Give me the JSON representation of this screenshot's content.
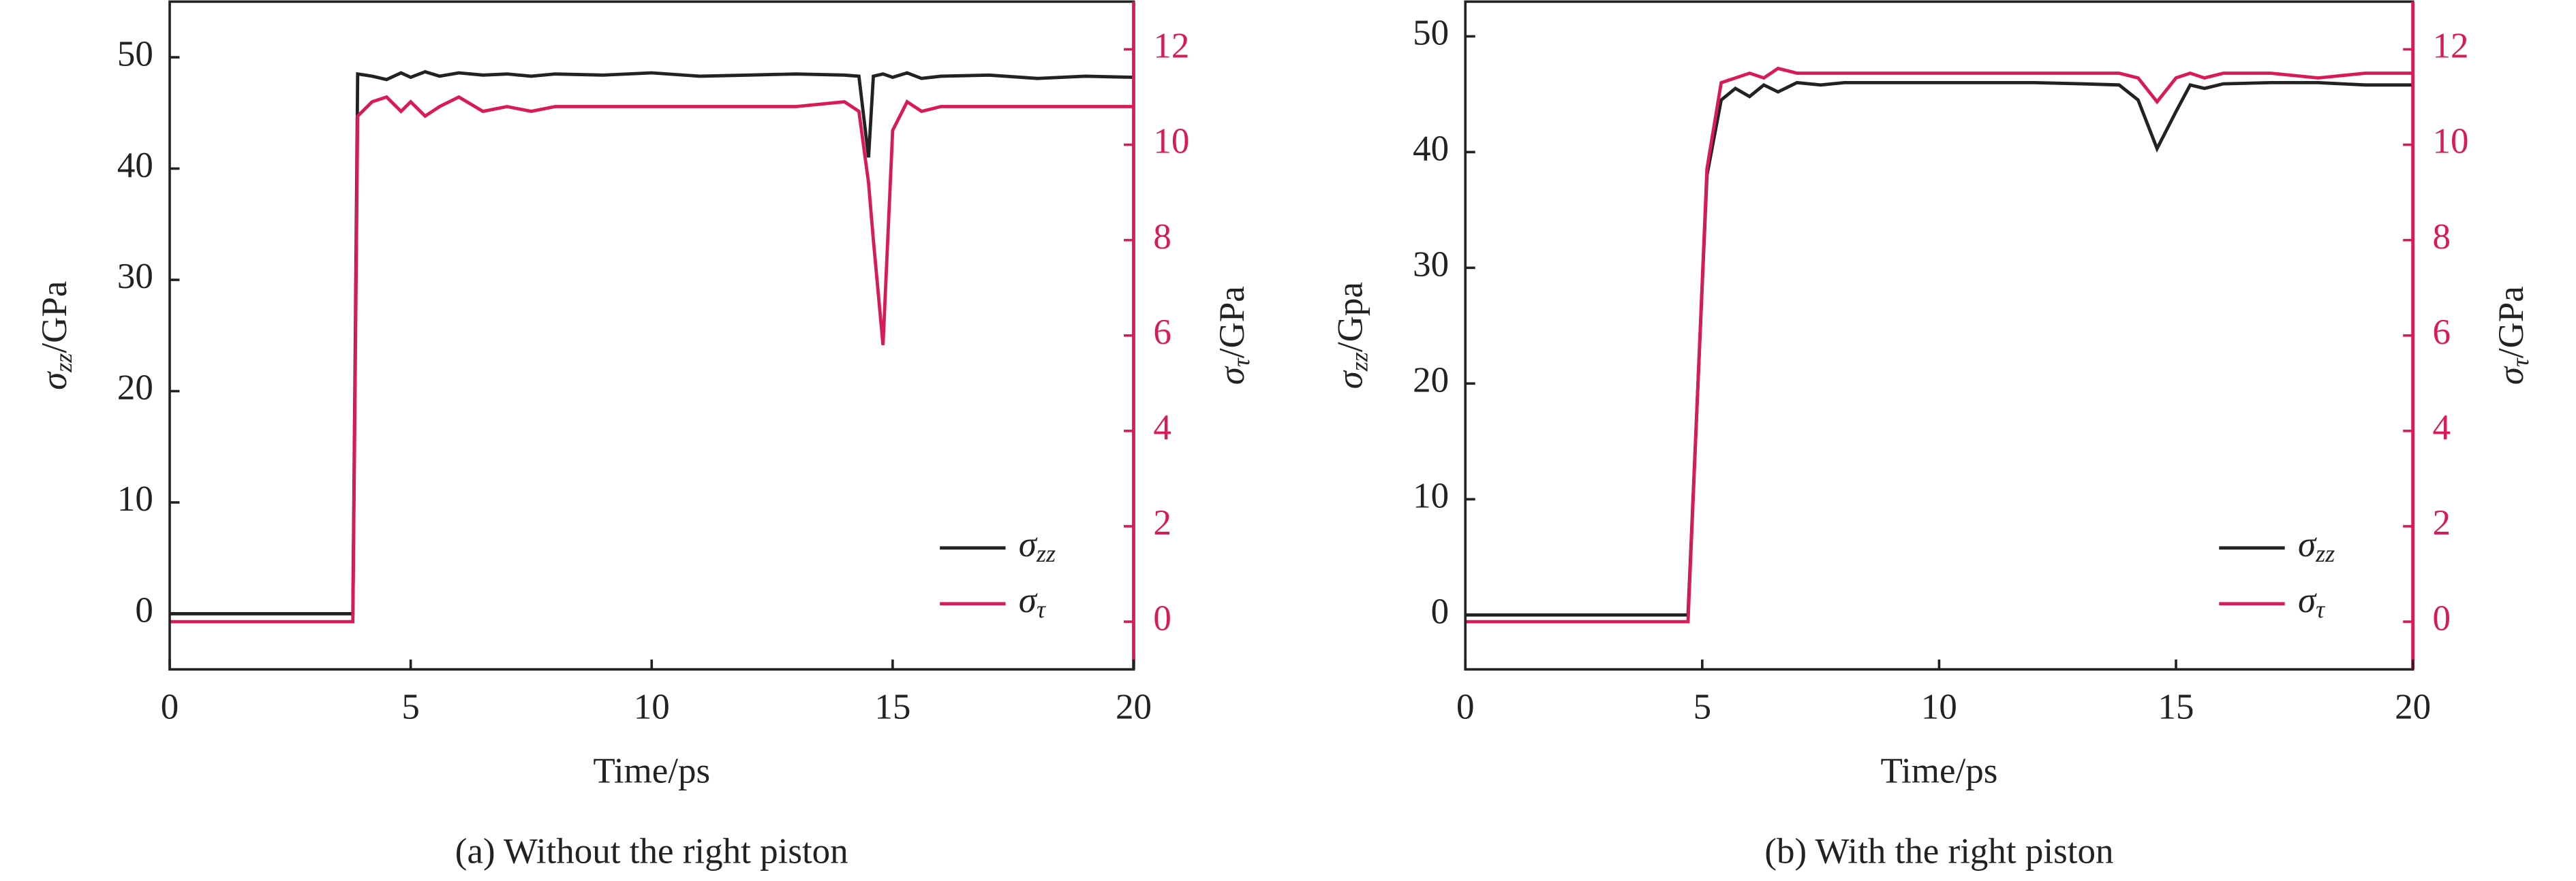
{
  "chart_data": [
    {
      "type": "line",
      "caption": "(a) Without the right piston",
      "xlabel": "Time/ps",
      "ylabel": "σzz/GPa",
      "y2label": "στ/GPa",
      "x": [
        0,
        1,
        2,
        3,
        3.8,
        3.9,
        4.2,
        4.5,
        4.8,
        5,
        5.3,
        5.6,
        6,
        6.5,
        7,
        7.5,
        8,
        9,
        10,
        11,
        12,
        13,
        14,
        14.3,
        14.5,
        14.6,
        14.8,
        15,
        15.3,
        15.6,
        16,
        17,
        18,
        19,
        20
      ],
      "series": [
        {
          "name": "σzz",
          "color": "#222222",
          "values": [
            0,
            0,
            0,
            0,
            0,
            48.5,
            48.3,
            48.0,
            48.6,
            48.2,
            48.7,
            48.3,
            48.6,
            48.4,
            48.5,
            48.3,
            48.5,
            48.4,
            48.6,
            48.3,
            48.4,
            48.5,
            48.4,
            48.3,
            41,
            48.3,
            48.5,
            48.2,
            48.6,
            48.1,
            48.3,
            48.4,
            48.1,
            48.3,
            48.2
          ]
        },
        {
          "name": "στ",
          "color": "#d81b55",
          "axis": "y2",
          "values": [
            0,
            0,
            0,
            0,
            0,
            10.6,
            10.9,
            11.0,
            10.7,
            10.9,
            10.6,
            10.8,
            11.0,
            10.7,
            10.8,
            10.7,
            10.8,
            10.8,
            10.8,
            10.8,
            10.8,
            10.8,
            10.9,
            10.7,
            9.2,
            8.0,
            5.8,
            10.3,
            10.9,
            10.7,
            10.8,
            10.8,
            10.8,
            10.8,
            10.8
          ]
        }
      ],
      "xlim": [
        0,
        20
      ],
      "xticks": [
        0,
        5,
        10,
        15,
        20
      ],
      "ylim": [
        -5,
        55
      ],
      "yticks": [
        0,
        10,
        20,
        30,
        40,
        50
      ],
      "y2lim": [
        -1,
        13
      ],
      "y2ticks": [
        0,
        2,
        4,
        6,
        8,
        10,
        12
      ],
      "y2color": "#d81b55",
      "legend": "lower right"
    },
    {
      "type": "line",
      "caption": "(b) With the right piston",
      "xlabel": "Time/ps",
      "ylabel": "σzz/Gpa",
      "y2label": "στ/GPa",
      "x": [
        0,
        1,
        2,
        3,
        4,
        4.7,
        5.1,
        5.4,
        5.7,
        6,
        6.3,
        6.6,
        7,
        7.5,
        8,
        9,
        10,
        11,
        12,
        13,
        13.8,
        14.2,
        14.6,
        15,
        15.3,
        15.6,
        16,
        17,
        18,
        19,
        20
      ],
      "series": [
        {
          "name": "σzz",
          "color": "#222222",
          "values": [
            0,
            0,
            0,
            0,
            0,
            0,
            38,
            44.5,
            45.5,
            44.8,
            45.8,
            45.2,
            46,
            45.8,
            46,
            46,
            46,
            46,
            46,
            45.9,
            45.8,
            44.5,
            40.3,
            43.5,
            45.8,
            45.5,
            45.9,
            46,
            46,
            45.8,
            45.8
          ]
        },
        {
          "name": "στ",
          "color": "#d81b55",
          "axis": "y2",
          "values": [
            0,
            0,
            0,
            0,
            0,
            0,
            9.5,
            11.3,
            11.4,
            11.5,
            11.4,
            11.6,
            11.5,
            11.5,
            11.5,
            11.5,
            11.5,
            11.5,
            11.5,
            11.5,
            11.5,
            11.4,
            10.9,
            11.4,
            11.5,
            11.4,
            11.5,
            11.5,
            11.4,
            11.5,
            11.5
          ]
        }
      ],
      "xlim": [
        0,
        20
      ],
      "xticks": [
        0,
        5,
        10,
        15,
        20
      ],
      "ylim": [
        -4.7,
        53
      ],
      "yticks": [
        0,
        10,
        20,
        30,
        40,
        50
      ],
      "y2lim": [
        -1,
        13
      ],
      "y2ticks": [
        0,
        2,
        4,
        6,
        8,
        10,
        12
      ],
      "y2color": "#d81b55",
      "legend": "lower right"
    }
  ]
}
